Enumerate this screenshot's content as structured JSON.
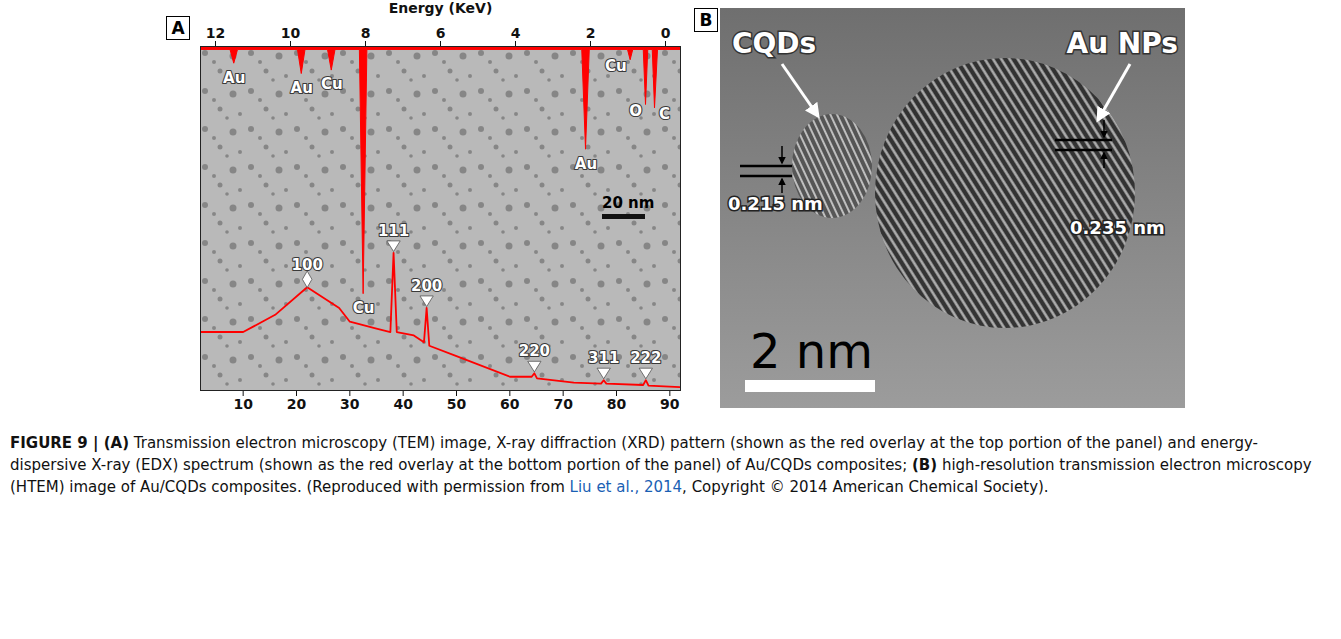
{
  "chart_data": [
    {
      "type": "area",
      "x_label": "Energy (KeV)",
      "color": "#ff0000",
      "x": [
        12.4,
        11.6,
        11.5,
        11.4,
        9.8,
        9.7,
        9.6,
        9.0,
        8.9,
        8.8,
        8.15,
        8.05,
        7.95,
        2.22,
        2.12,
        2.02,
        1.0,
        0.93,
        0.86,
        0.58,
        0.52,
        0.46,
        0.34,
        0.28,
        0.2,
        -0.4
      ],
      "values": [
        1,
        1,
        5,
        1,
        1,
        8,
        1,
        1,
        7,
        1,
        1,
        72,
        1,
        1,
        30,
        1,
        1,
        4,
        1,
        1,
        17,
        1,
        1,
        18,
        1,
        1
      ],
      "xlim": [
        12.4,
        -0.4
      ],
      "xticks": [
        12,
        10,
        8,
        6,
        4,
        2,
        0
      ],
      "ylim": [
        100,
        0
      ],
      "tick_labels": "x",
      "peak_labels": [
        {
          "x": 11.5,
          "y": 5,
          "text": "Au"
        },
        {
          "x": 9.7,
          "y": 8,
          "text": "Au"
        },
        {
          "x": 8.9,
          "y": 7,
          "text": "Cu"
        },
        {
          "x": 8.05,
          "y": 72,
          "text": "Cu"
        },
        {
          "x": 2.12,
          "y": 30,
          "text": "Au"
        },
        {
          "x": 0.93,
          "y": 4,
          "text": "Cu"
        },
        {
          "x": 0.52,
          "y": 17,
          "text": "O"
        },
        {
          "x": 0.28,
          "y": 18,
          "text": "C"
        }
      ]
    },
    {
      "type": "line",
      "color": "#ff0000",
      "x": [
        2,
        10,
        16,
        22,
        28,
        30,
        35,
        37.6,
        38.2,
        38.8,
        42,
        43.9,
        44.4,
        44.9,
        50,
        60,
        64.1,
        64.6,
        65.1,
        72,
        77.1,
        77.6,
        78.1,
        85,
        85.5,
        86,
        92
      ],
      "values": [
        17,
        17,
        22,
        30,
        24,
        20,
        18,
        17,
        40,
        17,
        16,
        14,
        24,
        13,
        10,
        4,
        4,
        5,
        3.5,
        2.3,
        2,
        3,
        2,
        1.6,
        3,
        1.4,
        1
      ],
      "xlim": [
        2,
        92
      ],
      "xticks": [
        10,
        20,
        30,
        40,
        50,
        60,
        70,
        80,
        90
      ],
      "ylim": [
        0,
        100
      ],
      "tick_labels": "x",
      "peak_labels": [
        {
          "x": 22,
          "y": 30,
          "text": "100",
          "marker": "diamond"
        },
        {
          "x": 38.2,
          "y": 40,
          "text": "111",
          "marker": "triangle-down"
        },
        {
          "x": 44.4,
          "y": 24,
          "text": "200",
          "marker": "triangle-down"
        },
        {
          "x": 64.6,
          "y": 5,
          "text": "220",
          "marker": "triangle-down"
        },
        {
          "x": 77.6,
          "y": 3,
          "text": "311",
          "marker": "triangle-down"
        },
        {
          "x": 85.5,
          "y": 3,
          "text": "222",
          "marker": "triangle-down"
        }
      ]
    }
  ],
  "panel_a": {
    "label": "A",
    "scale_bar": "20 nm"
  },
  "panel_b": {
    "label": "B",
    "annotations": [
      "CQDs",
      "Au NPs"
    ],
    "lattice_spacings": [
      "0.215 nm",
      "0.235 nm"
    ],
    "scale_bar": "2 nm"
  },
  "caption": [
    {
      "text": "FIGURE 9 | ",
      "bold": true
    },
    {
      "text": "(A)",
      "bold": true
    },
    {
      "text": " Transmission electron microscopy (TEM) image, X-ray diffraction (XRD) pattern (shown as the red overlay at the top portion of the panel) and energy-dispersive X-ray (EDX) spectrum (shown as the red overlay at the bottom portion of the panel) of Au/CQDs composites; "
    },
    {
      "text": "(B)",
      "bold": true
    },
    {
      "text": " high-resolution transmission electron microscopy (HTEM) image of Au/CQDs composites. (Reproduced with permission from "
    },
    {
      "text": "Liu et al., 2014",
      "link": true
    },
    {
      "text": ", Copyright © 2014 American Chemical Society)."
    }
  ]
}
